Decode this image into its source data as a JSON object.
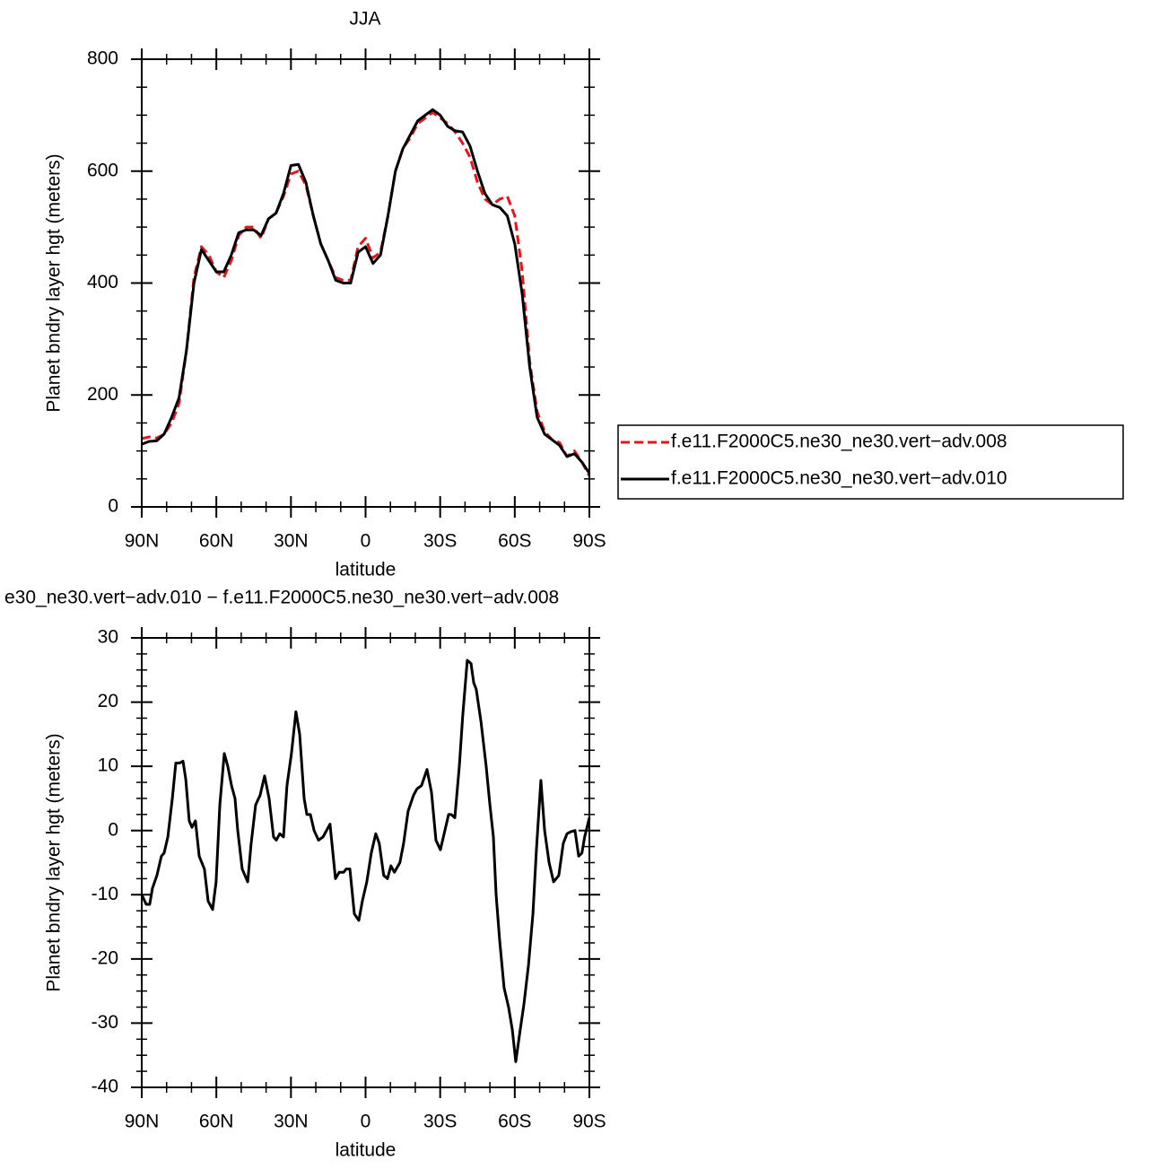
{
  "chart_data": [
    {
      "type": "line",
      "title": "JJA",
      "xlabel": "latitude",
      "ylabel": "Planet bndry layer hgt (meters)",
      "x": [
        90,
        87,
        84,
        81,
        78,
        75,
        72,
        69,
        66,
        63,
        60,
        57,
        54,
        51,
        48,
        45,
        42,
        39,
        36,
        33,
        30,
        27,
        24,
        21,
        18,
        15,
        12,
        9,
        6,
        3,
        0,
        -3,
        -6,
        -9,
        -12,
        -15,
        -18,
        -21,
        -24,
        -27,
        -30,
        -33,
        -36,
        -39,
        -42,
        -45,
        -48,
        -51,
        -54,
        -57,
        -60,
        -63,
        -66,
        -69,
        -72,
        -75,
        -78,
        -81,
        -84,
        -87,
        -90
      ],
      "series": [
        {
          "name": "f.e11.F2000C5.ne30_ne30.vert−adv.008",
          "color": "#e8141a",
          "dash": true,
          "values": [
            122,
            125,
            123,
            130,
            150,
            185,
            280,
            410,
            465,
            450,
            420,
            410,
            440,
            485,
            500,
            500,
            480,
            515,
            525,
            555,
            595,
            600,
            575,
            520,
            470,
            440,
            410,
            405,
            405,
            465,
            480,
            445,
            455,
            520,
            600,
            640,
            660,
            685,
            695,
            705,
            695,
            685,
            670,
            650,
            625,
            580,
            550,
            540,
            550,
            555,
            520,
            420,
            260,
            170,
            135,
            120,
            115,
            90,
            100,
            80,
            55
          ]
        },
        {
          "name": "f.e11.F2000C5.ne30_ne30.vert−adv.010",
          "color": "#000000",
          "dash": false,
          "values": [
            112,
            117,
            118,
            130,
            160,
            195,
            280,
            400,
            460,
            440,
            420,
            420,
            450,
            490,
            495,
            495,
            485,
            515,
            525,
            560,
            610,
            612,
            580,
            520,
            470,
            440,
            405,
            400,
            400,
            455,
            465,
            435,
            450,
            520,
            600,
            640,
            665,
            690,
            700,
            710,
            700,
            680,
            672,
            670,
            645,
            600,
            560,
            540,
            535,
            520,
            470,
            380,
            250,
            160,
            130,
            120,
            110,
            90,
            95,
            80,
            60
          ]
        }
      ],
      "xlim": [
        90,
        -90
      ],
      "xticks": [
        {
          "value": 90,
          "label": "90N"
        },
        {
          "value": 60,
          "label": "60N"
        },
        {
          "value": 30,
          "label": "30N"
        },
        0,
        {
          "value": -30,
          "label": "30S"
        },
        {
          "value": -60,
          "label": "60S"
        },
        {
          "value": -90,
          "label": "90S"
        }
      ],
      "ylim": [
        0,
        800
      ],
      "yticks": [
        0,
        200,
        400,
        600,
        800
      ],
      "legend": "right"
    },
    {
      "type": "line",
      "title": "e30_ne30.vert−adv.010 − f.e11.F2000C5.ne30_ne30.vert−adv.008",
      "xlabel": "latitude",
      "ylabel": "Planet bndry layer hgt (meters)",
      "x": [
        90,
        88.2,
        86.8,
        85.7,
        83.9,
        82.1,
        81.0,
        79.5,
        77.7,
        76.3,
        74.8,
        73.4,
        72.3,
        70.9,
        69.8,
        68.4,
        66.9,
        64.8,
        63.3,
        61.5,
        60.1,
        58.6,
        56.8,
        55.4,
        53.9,
        52.5,
        51.4,
        49.6,
        47.4,
        46.0,
        44.2,
        42.4,
        40.6,
        38.8,
        37.0,
        35.9,
        34.5,
        33.0,
        31.6,
        29.8,
        28.0,
        26.5,
        24.7,
        23.6,
        22.2,
        20.7,
        18.9,
        17.1,
        14.3,
        12.1,
        10.6,
        8.8,
        7.8,
        6.3,
        4.5,
        2.7,
        1.3,
        -0.5,
        -2.3,
        -4.1,
        -5.5,
        -7.3,
        -8.8,
        -10.2,
        -11.6,
        -13.8,
        -15.3,
        -17.1,
        -19.3,
        -20.7,
        -22.5,
        -24.7,
        -26.5,
        -28.3,
        -30.1,
        -31.9,
        -33.4,
        -34.4,
        -35.9,
        -37.7,
        -39.1,
        -40.9,
        -42.4,
        -43.5,
        -44.5,
        -46.4,
        -48.5,
        -50.0,
        -51.4,
        -52.5,
        -53.9,
        -55.7,
        -57.5,
        -59.0,
        -60.4,
        -62.2,
        -63.7,
        -65.5,
        -67.3,
        -68.7,
        -70.5,
        -72.0,
        -73.8,
        -75.6,
        -77.7,
        -79.5,
        -81.0,
        -82.4,
        -84.2,
        -85.7,
        -87.0,
        -88.1,
        -90
      ],
      "series": [
        {
          "name": null,
          "color": "#000000",
          "dash": false,
          "values": [
            -10,
            -11.5,
            -11.5,
            -9,
            -7,
            -4,
            -3.5,
            -1,
            5,
            10.5,
            10.5,
            10.8,
            8,
            1.5,
            0.5,
            1.5,
            -4,
            -6,
            -11,
            -12.3,
            -8,
            4,
            12,
            10,
            7,
            5,
            0,
            -6,
            -8,
            -2,
            4,
            5.5,
            8.5,
            5,
            -1,
            -1.5,
            -0.5,
            -1,
            7,
            12,
            18.5,
            15,
            5,
            2.5,
            2.5,
            0,
            -1.5,
            -1,
            1,
            -7.5,
            -6.5,
            -6.5,
            -6,
            -6,
            -13,
            -14,
            -11,
            -8,
            -3.5,
            -0.5,
            -2,
            -7,
            -7.5,
            -5.5,
            -6.5,
            -5,
            -2,
            3,
            5.5,
            6.5,
            7,
            9.5,
            6,
            -1.5,
            -3,
            0,
            2.5,
            2.5,
            2,
            10,
            18,
            26.5,
            26,
            23,
            22,
            17,
            10,
            4,
            -1,
            -10,
            -17,
            -24.5,
            -27.5,
            -31,
            -36,
            -31,
            -27,
            -21,
            -13,
            -3,
            7.8,
            0,
            -5,
            -8,
            -7,
            -2,
            -0.5,
            -0.2,
            0,
            -4,
            -3.5,
            -1,
            2
          ]
        }
      ],
      "xlim": [
        90,
        -90
      ],
      "xticks": [
        {
          "value": 90,
          "label": "90N"
        },
        {
          "value": 60,
          "label": "60N"
        },
        {
          "value": 30,
          "label": "30N"
        },
        0,
        {
          "value": -30,
          "label": "30S"
        },
        {
          "value": -60,
          "label": "60S"
        },
        {
          "value": -90,
          "label": "90S"
        }
      ],
      "ylim": [
        -40,
        30
      ],
      "yticks": [
        -40,
        -30,
        -20,
        -10,
        0,
        10,
        20,
        30
      ]
    }
  ]
}
